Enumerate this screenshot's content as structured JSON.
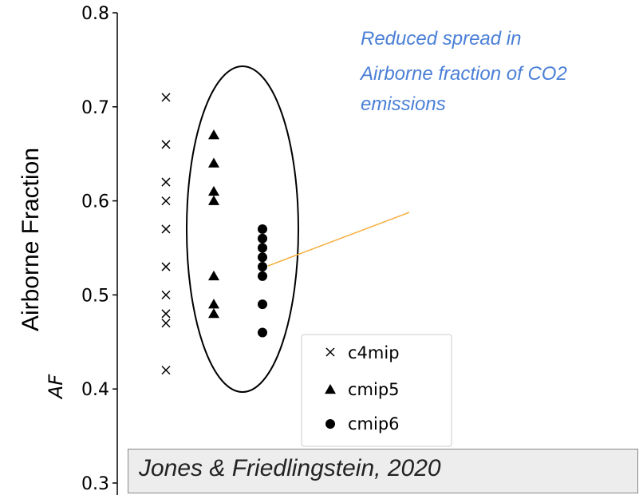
{
  "chart_data": {
    "type": "scatter",
    "ylabel": "Airborne Fraction",
    "ysymbol": "AF",
    "ylim": [
      0.3,
      0.8
    ],
    "yticks": [
      0.3,
      0.4,
      0.5,
      0.6,
      0.7,
      0.8
    ],
    "ytick_labels": [
      "0.3",
      "0.4",
      "0.5",
      "0.6",
      "0.7",
      "0.8"
    ],
    "grid": false,
    "legend_position": "lower-right",
    "series": [
      {
        "name": "c4mip",
        "marker": "x",
        "color": "#000000",
        "values": [
          0.71,
          0.66,
          0.62,
          0.6,
          0.57,
          0.53,
          0.5,
          0.48,
          0.47,
          0.42
        ]
      },
      {
        "name": "cmip5",
        "marker": "triangle",
        "color": "#000000",
        "values": [
          0.67,
          0.64,
          0.61,
          0.6,
          0.52,
          0.49,
          0.48
        ]
      },
      {
        "name": "cmip6",
        "marker": "circle",
        "color": "#000000",
        "values": [
          0.57,
          0.56,
          0.55,
          0.54,
          0.53,
          0.52,
          0.49,
          0.46
        ]
      }
    ],
    "annotation": {
      "lines": [
        "Reduced spread in",
        "Airborne fraction of CO2",
        "emissions"
      ],
      "color": "#4a7fd6",
      "pointer_color": "#f5b041"
    }
  },
  "citation": "Jones & Friedlingstein, 2020"
}
